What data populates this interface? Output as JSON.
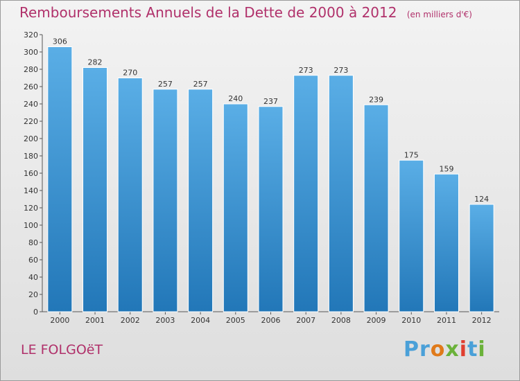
{
  "header": {
    "title": "Remboursements Annuels de la Dette de 2000 à 2012",
    "unit": "(en milliers d'€)"
  },
  "footer": {
    "commune": "LE FOLGOëT",
    "logo": "Proxiti"
  },
  "colors": {
    "title": "#b0306a",
    "bar_top": "#5aaee6",
    "bar_bottom": "#2277b8"
  },
  "chart_data": {
    "type": "bar",
    "title": "Remboursements Annuels de la Dette de 2000 à 2012",
    "xlabel": "",
    "ylabel": "",
    "categories": [
      "2000",
      "2001",
      "2002",
      "2003",
      "2004",
      "2005",
      "2006",
      "2007",
      "2008",
      "2009",
      "2010",
      "2011",
      "2012"
    ],
    "values": [
      306,
      282,
      270,
      257,
      257,
      240,
      237,
      273,
      273,
      239,
      175,
      159,
      124
    ],
    "ylim": [
      0,
      320
    ],
    "ytick_step": 20,
    "grid": false,
    "legend": "none",
    "data_labels": true
  }
}
